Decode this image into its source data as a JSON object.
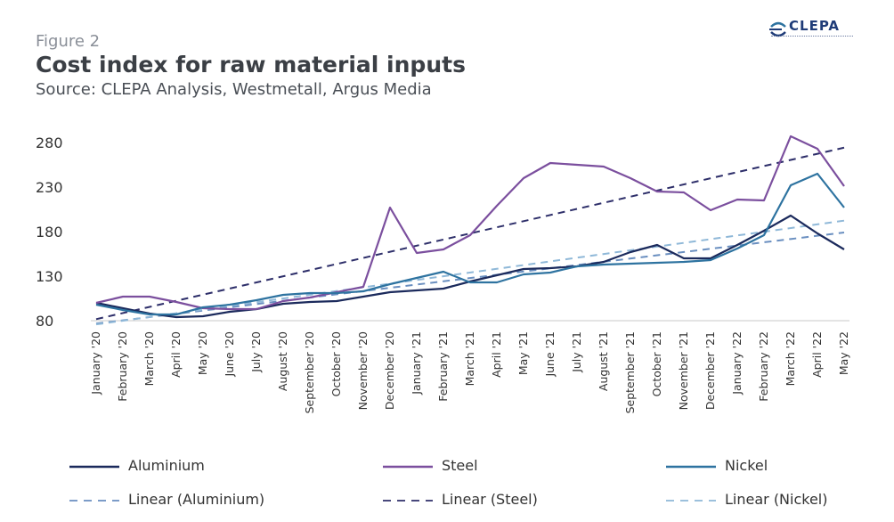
{
  "header": {
    "figure_label": "Figure 2",
    "title": "Cost index for raw material inputs",
    "subtitle": "Source: CLEPA Analysis, Westmetall, Argus Media",
    "logo_text": "CLEPA"
  },
  "colors": {
    "aluminium": "#1b2a5c",
    "steel": "#7b4f9e",
    "nickel": "#2e73a0",
    "lin_aluminium": "#6a8fc0",
    "lin_steel": "#2e2f6a",
    "lin_nickel": "#8fb8d8",
    "axis_text": "#333333"
  },
  "chart_data": {
    "type": "line",
    "title": "Cost index for raw material inputs",
    "xlabel": "",
    "ylabel": "",
    "ylim": [
      80,
      290
    ],
    "yticks": [
      80,
      130,
      180,
      230,
      280
    ],
    "categories": [
      "January '20",
      "February '20",
      "March '20",
      "April '20",
      "May '20",
      "June '20",
      "July '20",
      "August '20",
      "September '20",
      "October '20",
      "November '20",
      "December '20",
      "January '21",
      "February '21",
      "March '21",
      "April '21",
      "May '21",
      "June '21",
      "July '21",
      "August '21",
      "September '21",
      "October '21",
      "November '21",
      "December '21",
      "January '22",
      "February '22",
      "March '22",
      "April '22",
      "May '22"
    ],
    "series": [
      {
        "name": "Aluminium",
        "key": "aluminium",
        "style": "solid",
        "values": [
          100,
          94,
          88,
          84,
          85,
          90,
          93,
          99,
          101,
          102,
          107,
          112,
          114,
          116,
          124,
          131,
          138,
          139,
          141,
          146,
          157,
          165,
          150,
          150,
          165,
          181,
          198,
          178,
          160
        ]
      },
      {
        "name": "Steel",
        "key": "steel",
        "style": "solid",
        "values": [
          100,
          107,
          107,
          101,
          94,
          93,
          93,
          102,
          106,
          112,
          118,
          207,
          156,
          160,
          176,
          209,
          240,
          257,
          255,
          253,
          240,
          225,
          224,
          204,
          216,
          215,
          287,
          273,
          231
        ]
      },
      {
        "name": "Nickel",
        "key": "nickel",
        "style": "solid",
        "values": [
          98,
          92,
          87,
          87,
          95,
          98,
          103,
          109,
          111,
          111,
          113,
          121,
          128,
          135,
          123,
          123,
          132,
          134,
          141,
          143,
          144,
          145,
          146,
          148,
          161,
          176,
          232,
          245,
          207
        ]
      },
      {
        "name": "Linear (Aluminium)",
        "key": "lin_aluminium",
        "style": "dashed",
        "linear_of": "Aluminium"
      },
      {
        "name": "Linear (Steel)",
        "key": "lin_steel",
        "style": "dashed",
        "linear_of": "Steel"
      },
      {
        "name": "Linear (Nickel)",
        "key": "lin_nickel",
        "style": "dashed",
        "linear_of": "Nickel"
      }
    ],
    "legend": [
      "Aluminium",
      "Steel",
      "Nickel",
      "Linear (Aluminium)",
      "Linear (Steel)",
      "Linear (Nickel)"
    ]
  }
}
